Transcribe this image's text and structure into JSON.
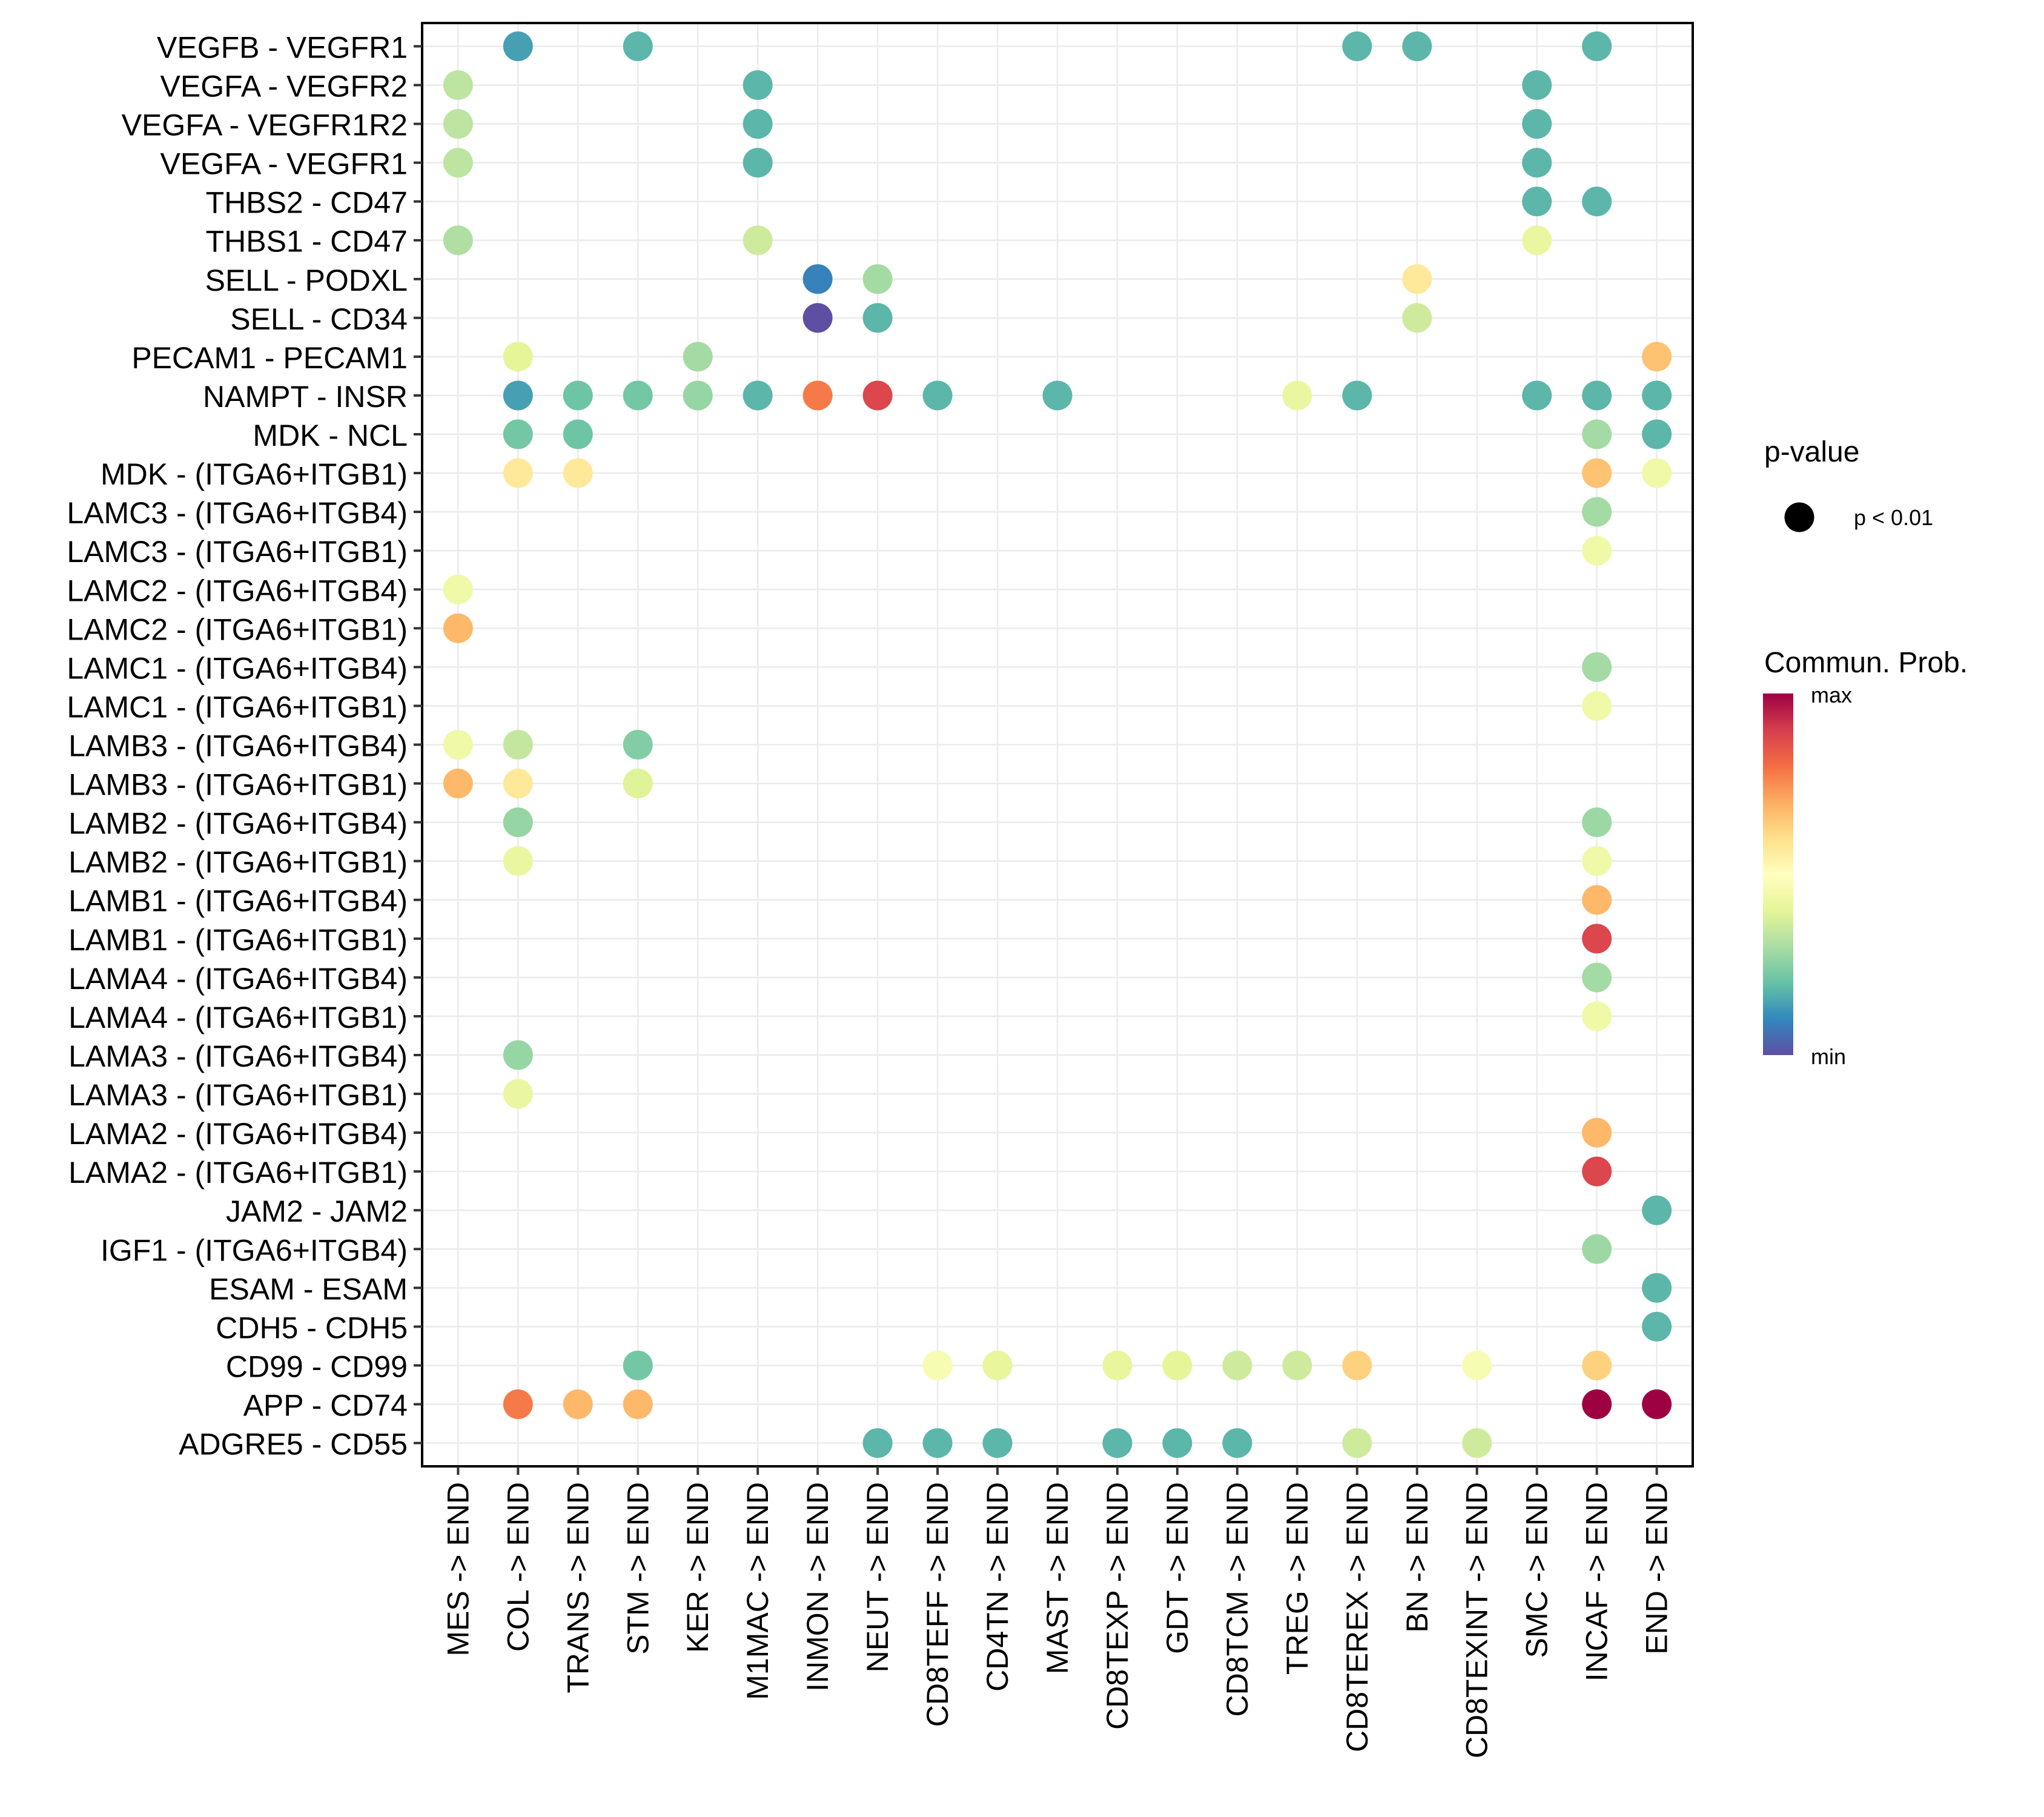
{
  "chart_data": {
    "type": "scatter",
    "subtype": "dot-matrix (bubble heatmap)",
    "title": "",
    "xlabel": "",
    "ylabel": "",
    "grid": true,
    "x_categories": [
      "MES -> END",
      "COL -> END",
      "TRANS -> END",
      "STM -> END",
      "KER -> END",
      "M1MAC -> END",
      "INMON -> END",
      "NEUT -> END",
      "CD8TEFF -> END",
      "CD4TN -> END",
      "MAST -> END",
      "CD8TEXP -> END",
      "GDT -> END",
      "CD8TCM -> END",
      "TREG -> END",
      "CD8TEREX -> END",
      "BN -> END",
      "CD8TEXINT -> END",
      "SMC -> END",
      "INCAF -> END",
      "END -> END"
    ],
    "y_categories": [
      "VEGFB - VEGFR1",
      "VEGFA - VEGFR2",
      "VEGFA - VEGFR1R2",
      "VEGFA - VEGFR1",
      "THBS2 - CD47",
      "THBS1 - CD47",
      "SELL - PODXL",
      "SELL - CD34",
      "PECAM1 - PECAM1",
      "NAMPT - INSR",
      "MDK - NCL",
      "MDK - (ITGA6+ITGB1)",
      "LAMC3 - (ITGA6+ITGB4)",
      "LAMC3 - (ITGA6+ITGB1)",
      "LAMC2 - (ITGA6+ITGB4)",
      "LAMC2 - (ITGA6+ITGB1)",
      "LAMC1 - (ITGA6+ITGB4)",
      "LAMC1 - (ITGA6+ITGB1)",
      "LAMB3 - (ITGA6+ITGB4)",
      "LAMB3 - (ITGA6+ITGB1)",
      "LAMB2 - (ITGA6+ITGB4)",
      "LAMB2 - (ITGA6+ITGB1)",
      "LAMB1 - (ITGA6+ITGB4)",
      "LAMB1 - (ITGA6+ITGB1)",
      "LAMA4 - (ITGA6+ITGB4)",
      "LAMA4 - (ITGA6+ITGB1)",
      "LAMA3 - (ITGA6+ITGB4)",
      "LAMA3 - (ITGA6+ITGB1)",
      "LAMA2 - (ITGA6+ITGB4)",
      "LAMA2 - (ITGA6+ITGB1)",
      "JAM2 - JAM2",
      "IGF1 - (ITGA6+ITGB4)",
      "ESAM - ESAM",
      "CDH5 - CDH5",
      "CD99 - CD99",
      "APP - CD74",
      "ADGRE5 - CD55"
    ],
    "value_scale": "normalized communication probability, 0 = min, 1 = max",
    "points": [
      {
        "y": "VEGFB - VEGFR1",
        "x": "COL -> END",
        "value": 0.14
      },
      {
        "y": "VEGFB - VEGFR1",
        "x": "STM -> END",
        "value": 0.18
      },
      {
        "y": "VEGFB - VEGFR1",
        "x": "CD8TEREX -> END",
        "value": 0.18
      },
      {
        "y": "VEGFB - VEGFR1",
        "x": "BN -> END",
        "value": 0.18
      },
      {
        "y": "VEGFB - VEGFR1",
        "x": "INCAF -> END",
        "value": 0.18
      },
      {
        "y": "VEGFA - VEGFR2",
        "x": "MES -> END",
        "value": 0.33
      },
      {
        "y": "VEGFA - VEGFR2",
        "x": "M1MAC -> END",
        "value": 0.18
      },
      {
        "y": "VEGFA - VEGFR2",
        "x": "SMC -> END",
        "value": 0.18
      },
      {
        "y": "VEGFA - VEGFR1R2",
        "x": "MES -> END",
        "value": 0.33
      },
      {
        "y": "VEGFA - VEGFR1R2",
        "x": "M1MAC -> END",
        "value": 0.18
      },
      {
        "y": "VEGFA - VEGFR1R2",
        "x": "SMC -> END",
        "value": 0.18
      },
      {
        "y": "VEGFA - VEGFR1",
        "x": "MES -> END",
        "value": 0.33
      },
      {
        "y": "VEGFA - VEGFR1",
        "x": "M1MAC -> END",
        "value": 0.18
      },
      {
        "y": "VEGFA - VEGFR1",
        "x": "SMC -> END",
        "value": 0.18
      },
      {
        "y": "THBS2 - CD47",
        "x": "SMC -> END",
        "value": 0.18
      },
      {
        "y": "THBS2 - CD47",
        "x": "INCAF -> END",
        "value": 0.18
      },
      {
        "y": "THBS1 - CD47",
        "x": "MES -> END",
        "value": 0.31
      },
      {
        "y": "THBS1 - CD47",
        "x": "M1MAC -> END",
        "value": 0.36
      },
      {
        "y": "THBS1 - CD47",
        "x": "SMC -> END",
        "value": 0.42
      },
      {
        "y": "SELL - PODXL",
        "x": "INMON -> END",
        "value": 0.09
      },
      {
        "y": "SELL - PODXL",
        "x": "NEUT -> END",
        "value": 0.29
      },
      {
        "y": "SELL - PODXL",
        "x": "BN -> END",
        "value": 0.57
      },
      {
        "y": "SELL - CD34",
        "x": "INMON -> END",
        "value": 0.0
      },
      {
        "y": "SELL - CD34",
        "x": "NEUT -> END",
        "value": 0.18
      },
      {
        "y": "SELL - CD34",
        "x": "BN -> END",
        "value": 0.36
      },
      {
        "y": "PECAM1 - PECAM1",
        "x": "COL -> END",
        "value": 0.4
      },
      {
        "y": "PECAM1 - PECAM1",
        "x": "KER -> END",
        "value": 0.29
      },
      {
        "y": "PECAM1 - PECAM1",
        "x": "END -> END",
        "value": 0.66
      },
      {
        "y": "NAMPT - INSR",
        "x": "COL -> END",
        "value": 0.14
      },
      {
        "y": "NAMPT - INSR",
        "x": "TRANS -> END",
        "value": 0.21
      },
      {
        "y": "NAMPT - INSR",
        "x": "STM -> END",
        "value": 0.22
      },
      {
        "y": "NAMPT - INSR",
        "x": "KER -> END",
        "value": 0.27
      },
      {
        "y": "NAMPT - INSR",
        "x": "M1MAC -> END",
        "value": 0.18
      },
      {
        "y": "NAMPT - INSR",
        "x": "INMON -> END",
        "value": 0.78
      },
      {
        "y": "NAMPT - INSR",
        "x": "NEUT -> END",
        "value": 0.88
      },
      {
        "y": "NAMPT - INSR",
        "x": "CD8TEFF -> END",
        "value": 0.18
      },
      {
        "y": "NAMPT - INSR",
        "x": "MAST -> END",
        "value": 0.18
      },
      {
        "y": "NAMPT - INSR",
        "x": "TREG -> END",
        "value": 0.42
      },
      {
        "y": "NAMPT - INSR",
        "x": "CD8TEREX -> END",
        "value": 0.18
      },
      {
        "y": "NAMPT - INSR",
        "x": "SMC -> END",
        "value": 0.18
      },
      {
        "y": "NAMPT - INSR",
        "x": "INCAF -> END",
        "value": 0.18
      },
      {
        "y": "NAMPT - INSR",
        "x": "END -> END",
        "value": 0.18
      },
      {
        "y": "MDK - NCL",
        "x": "COL -> END",
        "value": 0.22
      },
      {
        "y": "MDK - NCL",
        "x": "TRANS -> END",
        "value": 0.21
      },
      {
        "y": "MDK - NCL",
        "x": "INCAF -> END",
        "value": 0.29
      },
      {
        "y": "MDK - NCL",
        "x": "END -> END",
        "value": 0.18
      },
      {
        "y": "MDK - (ITGA6+ITGB1)",
        "x": "COL -> END",
        "value": 0.57
      },
      {
        "y": "MDK - (ITGA6+ITGB1)",
        "x": "TRANS -> END",
        "value": 0.57
      },
      {
        "y": "MDK - (ITGA6+ITGB1)",
        "x": "INCAF -> END",
        "value": 0.66
      },
      {
        "y": "MDK - (ITGA6+ITGB1)",
        "x": "END -> END",
        "value": 0.44
      },
      {
        "y": "LAMC3 - (ITGA6+ITGB4)",
        "x": "INCAF -> END",
        "value": 0.29
      },
      {
        "y": "LAMC3 - (ITGA6+ITGB1)",
        "x": "INCAF -> END",
        "value": 0.44
      },
      {
        "y": "LAMC2 - (ITGA6+ITGB4)",
        "x": "MES -> END",
        "value": 0.44
      },
      {
        "y": "LAMC2 - (ITGA6+ITGB1)",
        "x": "MES -> END",
        "value": 0.68
      },
      {
        "y": "LAMC1 - (ITGA6+ITGB4)",
        "x": "INCAF -> END",
        "value": 0.29
      },
      {
        "y": "LAMC1 - (ITGA6+ITGB1)",
        "x": "INCAF -> END",
        "value": 0.44
      },
      {
        "y": "LAMB3 - (ITGA6+ITGB4)",
        "x": "MES -> END",
        "value": 0.44
      },
      {
        "y": "LAMB3 - (ITGA6+ITGB4)",
        "x": "COL -> END",
        "value": 0.34
      },
      {
        "y": "LAMB3 - (ITGA6+ITGB4)",
        "x": "STM -> END",
        "value": 0.24
      },
      {
        "y": "LAMB3 - (ITGA6+ITGB1)",
        "x": "MES -> END",
        "value": 0.68
      },
      {
        "y": "LAMB3 - (ITGA6+ITGB1)",
        "x": "COL -> END",
        "value": 0.57
      },
      {
        "y": "LAMB3 - (ITGA6+ITGB1)",
        "x": "STM -> END",
        "value": 0.39
      },
      {
        "y": "LAMB2 - (ITGA6+ITGB4)",
        "x": "COL -> END",
        "value": 0.27
      },
      {
        "y": "LAMB2 - (ITGA6+ITGB4)",
        "x": "INCAF -> END",
        "value": 0.28
      },
      {
        "y": "LAMB2 - (ITGA6+ITGB1)",
        "x": "COL -> END",
        "value": 0.42
      },
      {
        "y": "LAMB2 - (ITGA6+ITGB1)",
        "x": "INCAF -> END",
        "value": 0.44
      },
      {
        "y": "LAMB1 - (ITGA6+ITGB4)",
        "x": "INCAF -> END",
        "value": 0.68
      },
      {
        "y": "LAMB1 - (ITGA6+ITGB1)",
        "x": "INCAF -> END",
        "value": 0.88
      },
      {
        "y": "LAMA4 - (ITGA6+ITGB4)",
        "x": "INCAF -> END",
        "value": 0.29
      },
      {
        "y": "LAMA4 - (ITGA6+ITGB1)",
        "x": "INCAF -> END",
        "value": 0.44
      },
      {
        "y": "LAMA3 - (ITGA6+ITGB4)",
        "x": "COL -> END",
        "value": 0.27
      },
      {
        "y": "LAMA3 - (ITGA6+ITGB1)",
        "x": "COL -> END",
        "value": 0.42
      },
      {
        "y": "LAMA2 - (ITGA6+ITGB4)",
        "x": "INCAF -> END",
        "value": 0.68
      },
      {
        "y": "LAMA2 - (ITGA6+ITGB1)",
        "x": "INCAF -> END",
        "value": 0.88
      },
      {
        "y": "JAM2 - JAM2",
        "x": "END -> END",
        "value": 0.18
      },
      {
        "y": "IGF1 - (ITGA6+ITGB4)",
        "x": "INCAF -> END",
        "value": 0.28
      },
      {
        "y": "ESAM - ESAM",
        "x": "END -> END",
        "value": 0.18
      },
      {
        "y": "CDH5 - CDH5",
        "x": "END -> END",
        "value": 0.18
      },
      {
        "y": "CD99 - CD99",
        "x": "STM -> END",
        "value": 0.22
      },
      {
        "y": "CD99 - CD99",
        "x": "CD8TEFF -> END",
        "value": 0.47
      },
      {
        "y": "CD99 - CD99",
        "x": "CD4TN -> END",
        "value": 0.41
      },
      {
        "y": "CD99 - CD99",
        "x": "CD8TEXP -> END",
        "value": 0.41
      },
      {
        "y": "CD99 - CD99",
        "x": "GDT -> END",
        "value": 0.4
      },
      {
        "y": "CD99 - CD99",
        "x": "CD8TCM -> END",
        "value": 0.36
      },
      {
        "y": "CD99 - CD99",
        "x": "TREG -> END",
        "value": 0.36
      },
      {
        "y": "CD99 - CD99",
        "x": "CD8TEREX -> END",
        "value": 0.63
      },
      {
        "y": "CD99 - CD99",
        "x": "CD8TEXINT -> END",
        "value": 0.47
      },
      {
        "y": "CD99 - CD99",
        "x": "INCAF -> END",
        "value": 0.63
      },
      {
        "y": "APP - CD74",
        "x": "COL -> END",
        "value": 0.78
      },
      {
        "y": "APP - CD74",
        "x": "TRANS -> END",
        "value": 0.68
      },
      {
        "y": "APP - CD74",
        "x": "STM -> END",
        "value": 0.68
      },
      {
        "y": "APP - CD74",
        "x": "INCAF -> END",
        "value": 1.0
      },
      {
        "y": "APP - CD74",
        "x": "END -> END",
        "value": 1.0
      },
      {
        "y": "ADGRE5 - CD55",
        "x": "NEUT -> END",
        "value": 0.18
      },
      {
        "y": "ADGRE5 - CD55",
        "x": "CD8TEFF -> END",
        "value": 0.18
      },
      {
        "y": "ADGRE5 - CD55",
        "x": "CD4TN -> END",
        "value": 0.18
      },
      {
        "y": "ADGRE5 - CD55",
        "x": "CD8TEXP -> END",
        "value": 0.18
      },
      {
        "y": "ADGRE5 - CD55",
        "x": "GDT -> END",
        "value": 0.18
      },
      {
        "y": "ADGRE5 - CD55",
        "x": "CD8TCM -> END",
        "value": 0.18
      },
      {
        "y": "ADGRE5 - CD55",
        "x": "CD8TEREX -> END",
        "value": 0.36
      },
      {
        "y": "ADGRE5 - CD55",
        "x": "CD8TEXINT -> END",
        "value": 0.36
      }
    ],
    "pvalue_legend": {
      "title": "p-value",
      "entries": [
        {
          "label": "p < 0.01",
          "color": "#000000"
        }
      ]
    },
    "color_legend": {
      "title": "Commun. Prob.",
      "max_label": "max",
      "min_label": "min",
      "palette": [
        "#5E4FA2",
        "#3288BD",
        "#66C2A5",
        "#ABDDA4",
        "#E6F598",
        "#FFFFBF",
        "#FEE08B",
        "#FDAE61",
        "#F46D43",
        "#D53E4F",
        "#9E0142"
      ]
    },
    "legend_position": "right"
  }
}
